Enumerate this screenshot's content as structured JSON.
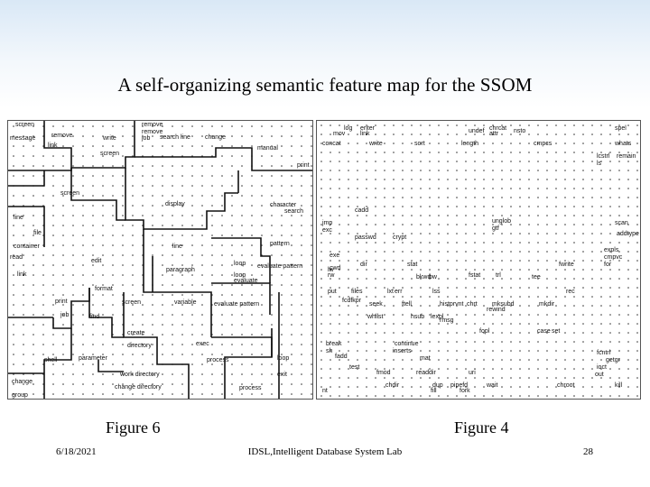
{
  "slide": {
    "title": "A self-organizing semantic feature map for the SSOM",
    "footer_date": "6/18/2021",
    "footer_lab": "IDSL,Intelligent Database System Lab",
    "page_number": "28"
  },
  "figures": [
    {
      "caption": "Figure 6",
      "labels": [
        "screen",
        "remove",
        "remove",
        "job",
        "message",
        "remove",
        "write",
        "search line",
        "change",
        "link",
        "screen",
        "manual",
        "print",
        "screen",
        "display",
        "character",
        "line",
        "search",
        "file",
        "line",
        "pattern",
        "container",
        "edit",
        "loop",
        "evaluate pattern",
        "read",
        "paragraph",
        "loop",
        "evaluate",
        "link",
        "format",
        "print",
        "screen",
        "variable",
        "evaluate pattern",
        "job",
        "find",
        "create",
        "directory",
        "exec",
        "shell",
        "parameter",
        "process",
        "loop",
        "work directory",
        "exit",
        "change",
        "change directory",
        "process",
        "group"
      ]
    },
    {
      "caption": "Figure 4",
      "labels": [
        "log",
        "enter",
        "link",
        "undef",
        "chrcat",
        "attr",
        "nsto",
        "spel",
        "mov",
        "concat",
        "write",
        "sort",
        "length",
        "cmpcs",
        "whats",
        "lcstrl",
        "remain",
        "ls",
        "cadd",
        "unglob",
        "jmp",
        "exc",
        "scan",
        "gtf",
        "addtype",
        "expls",
        "passwd",
        "crypt",
        "cmpvc",
        "exe",
        "cwd",
        "dir",
        "stat",
        "lw",
        "fwrite",
        "for",
        "rw",
        "bkwd",
        "bw",
        "lxt",
        "fstat",
        "trl",
        "tee",
        "put",
        "files",
        "err",
        "lss",
        "rec",
        "fcdfkpr",
        "seek",
        "ftell",
        "histprvnt",
        "chrt",
        "mksubd",
        "rewind",
        "mkdir",
        "hsub",
        "lexpl",
        "whilst",
        "rmsg",
        "fopl",
        "case",
        "set",
        "break",
        "continue",
        "sh",
        "inserts",
        "mat",
        "fcntrl",
        "ioct",
        "getgr",
        "fadd",
        "test",
        "fmod",
        "readdir",
        "uri",
        "out",
        "dup",
        "pipefd",
        "fork",
        "wait",
        "fill",
        "chdir",
        "chroot",
        "nt",
        "kill"
      ]
    }
  ]
}
